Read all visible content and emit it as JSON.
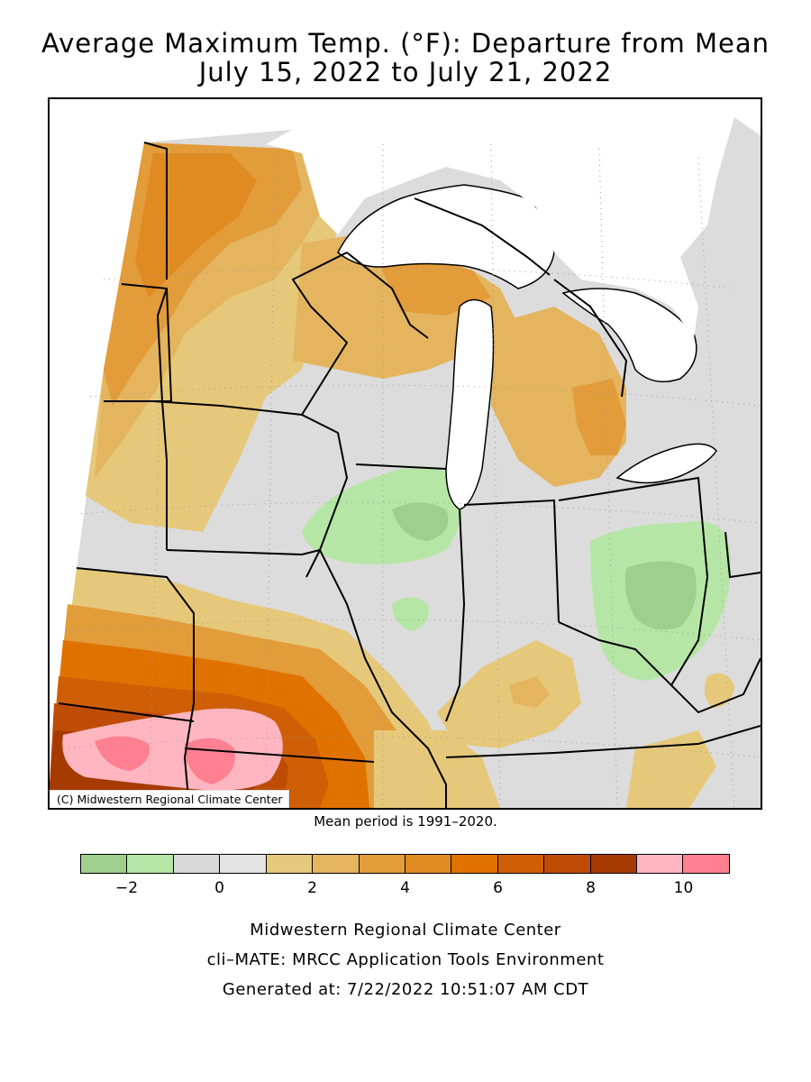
{
  "header": {
    "title_line1": "Average Maximum Temp. (°F): Departure from Mean",
    "title_line2": "July 15, 2022 to July 21, 2022"
  },
  "map": {
    "copyright": "(C) Midwestern Regional Climate Center",
    "mean_period": "Mean period is 1991–2020.",
    "region": "Midwest United States",
    "colors": {
      "lake": "#ffffff",
      "boundary": "#000000",
      "graticule": "#9a9a9a"
    }
  },
  "legend": {
    "colors": [
      "#9fcf8c",
      "#b6e6a5",
      "#d9d9d9",
      "#e3e3e3",
      "#e6c87a",
      "#e4b45f",
      "#e29c3a",
      "#e08a22",
      "#e07200",
      "#cf5f07",
      "#bf4c05",
      "#a53a02",
      "#ffb6c1",
      "#ff8090"
    ],
    "tick_labels": [
      "−2",
      "0",
      "2",
      "4",
      "6",
      "8",
      "10"
    ]
  },
  "footer": {
    "line1": "Midwestern Regional Climate Center",
    "line2": "cli–MATE: MRCC Application Tools Environment",
    "line3": "Generated at: 7/22/2022 10:51:07 AM CDT"
  }
}
